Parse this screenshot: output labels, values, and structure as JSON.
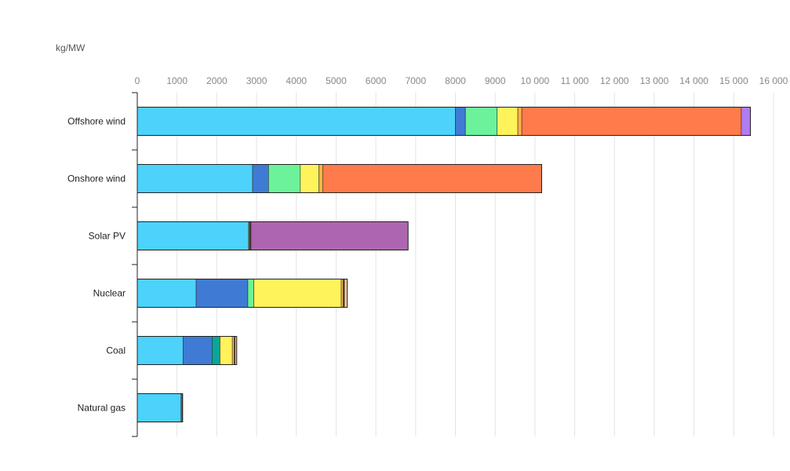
{
  "chart_data": {
    "type": "bar",
    "orientation": "horizontal",
    "stacked": true,
    "unit_label": "kg/MW",
    "xlim": [
      0,
      16000
    ],
    "x_ticks": [
      0,
      1000,
      2000,
      3000,
      4000,
      5000,
      6000,
      7000,
      8000,
      9000,
      10000,
      11000,
      12000,
      13000,
      14000,
      15000,
      16000
    ],
    "x_tick_labels": [
      "0",
      "1000",
      "2000",
      "3000",
      "4000",
      "5000",
      "6000",
      "7000",
      "8000",
      "9000",
      "10 000",
      "11 000",
      "12 000",
      "13 000",
      "14 000",
      "15 000",
      "16 000"
    ],
    "grid": true,
    "categories": [
      "Offshore wind",
      "Onshore wind",
      "Solar PV",
      "Nuclear",
      "Coal",
      "Natural gas"
    ],
    "series": [
      {
        "color": "#4cd2fb",
        "values": [
          8000,
          2900,
          2800,
          1480,
          1150,
          1100
        ]
      },
      {
        "color": "#3f7bd4",
        "values": [
          250,
          400,
          0,
          1300,
          730,
          0
        ]
      },
      {
        "color": "#6cf29a",
        "values": [
          800,
          800,
          0,
          150,
          0,
          0
        ]
      },
      {
        "color": "#0aa59a",
        "values": [
          0,
          0,
          0,
          0,
          200,
          0
        ]
      },
      {
        "color": "#fff35c",
        "values": [
          520,
          470,
          0,
          2200,
          310,
          0
        ]
      },
      {
        "color": "#ffb347",
        "values": [
          100,
          100,
          20,
          50,
          50,
          20
        ]
      },
      {
        "color": "#5a3a2a",
        "values": [
          0,
          0,
          40,
          30,
          20,
          20
        ]
      },
      {
        "color": "#ff7b4c",
        "values": [
          5520,
          5500,
          0,
          0,
          0,
          0
        ]
      },
      {
        "color": "#ae65b1",
        "values": [
          0,
          0,
          3950,
          0,
          0,
          0
        ]
      },
      {
        "color": "#b07cf0",
        "values": [
          230,
          0,
          0,
          0,
          0,
          0
        ]
      },
      {
        "color": "#f2d0a6",
        "values": [
          0,
          0,
          0,
          70,
          40,
          0
        ]
      }
    ],
    "totals": [
      15420,
      10170,
      6810,
      5280,
      2500,
      1140
    ]
  }
}
